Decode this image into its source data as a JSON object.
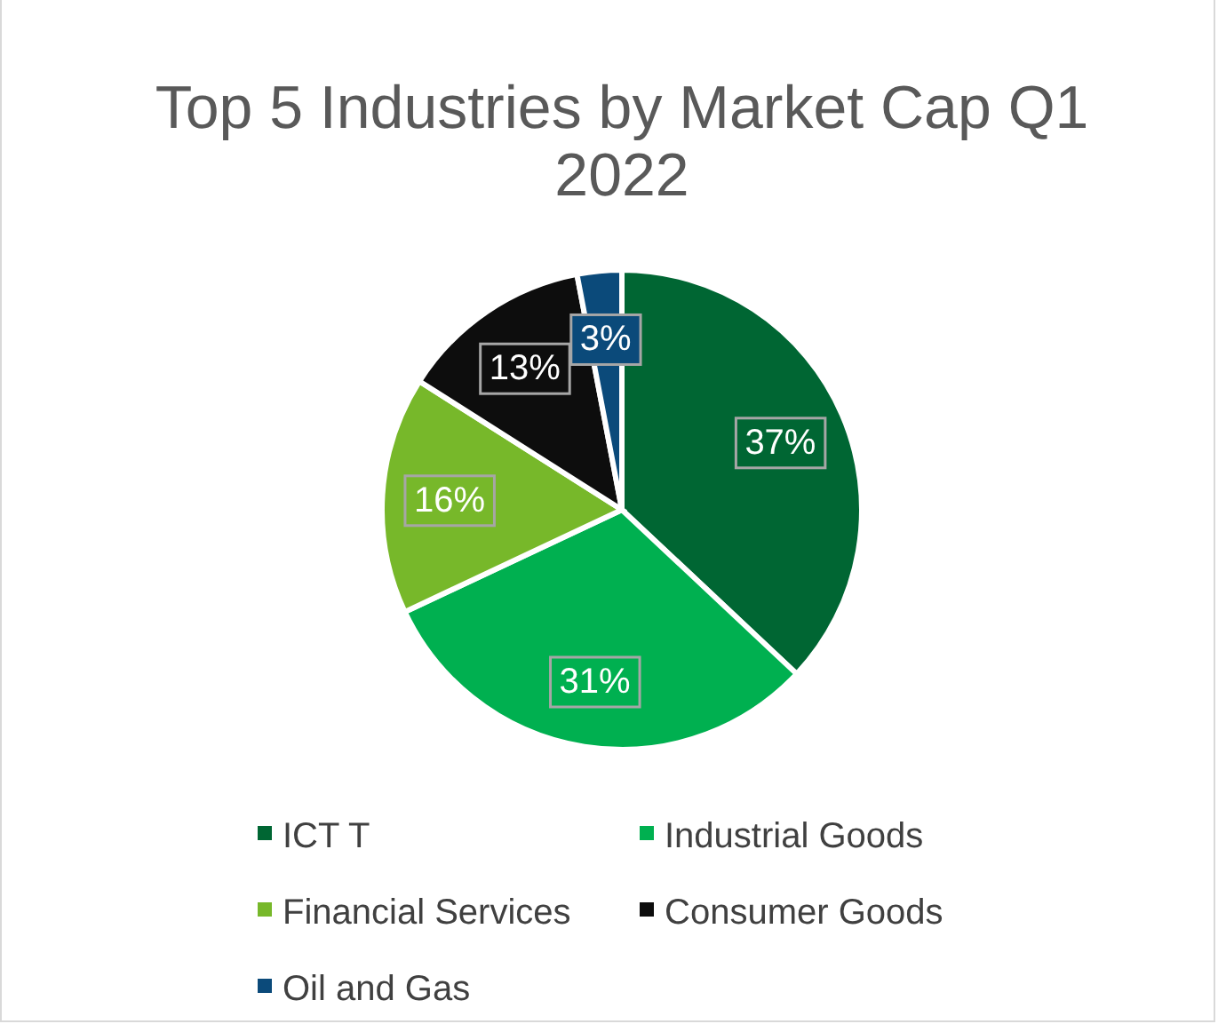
{
  "chart_data": {
    "type": "pie",
    "title": "Top 5 Industries by Market Cap Q1 2022",
    "categories": [
      "ICT T",
      "Industrial Goods",
      "Financial Services",
      "Consumer Goods",
      "Oil and Gas"
    ],
    "values": [
      37,
      31,
      16,
      13,
      3
    ],
    "colors": [
      "#006633",
      "#00b050",
      "#77b82a",
      "#0d0d0d",
      "#0b4a7a"
    ],
    "value_labels": [
      "37%",
      "31%",
      "16%",
      "13%",
      "3%"
    ],
    "legend": "bottom"
  }
}
